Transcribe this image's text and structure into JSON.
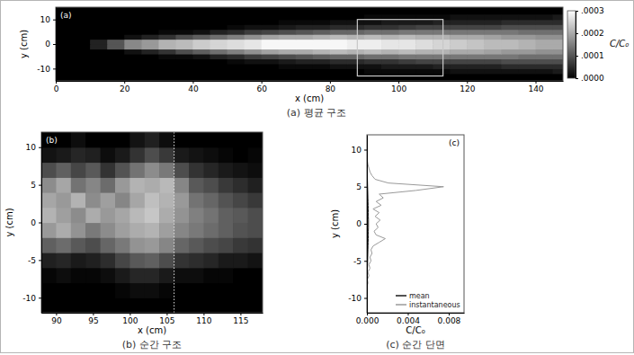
{
  "chart_data": [
    {
      "type": "heatmap",
      "title": "(a) 평균 구조",
      "label": "(a)",
      "x_label": "x (cm)",
      "y_label": "y (cm)",
      "x": [
        2.5,
        7.5,
        12.5,
        17.5,
        22.5,
        27.5,
        32.5,
        37.5,
        42.5,
        47.5,
        52.5,
        57.5,
        62.5,
        67.5,
        72.5,
        77.5,
        82.5,
        87.5,
        92.5,
        97.5,
        102.5,
        107.5,
        112.5,
        117.5,
        122.5,
        127.5,
        132.5,
        137.5,
        142.5,
        147.5
      ],
      "y": [
        -11,
        -9,
        -7,
        -5,
        -3,
        -1,
        1,
        3,
        5,
        7,
        9,
        11
      ],
      "z": [
        [
          0,
          0,
          0,
          0,
          0,
          0,
          0,
          0,
          0,
          0,
          0,
          0,
          0,
          0,
          0,
          0,
          0,
          0,
          1e-05,
          1e-05,
          1e-05,
          1e-05,
          1e-05,
          2e-05,
          2e-05,
          2e-05,
          2e-05,
          2e-05,
          2e-05,
          3e-05
        ],
        [
          0,
          0,
          0,
          0,
          0,
          0,
          0,
          0,
          0,
          0,
          0,
          0,
          0,
          1e-05,
          1e-05,
          1e-05,
          2e-05,
          2e-05,
          2e-05,
          3e-05,
          3e-05,
          3e-05,
          4e-05,
          4e-05,
          4e-05,
          4e-05,
          5e-05,
          5e-05,
          5e-05,
          5e-05
        ],
        [
          0,
          0,
          0,
          0,
          0,
          0,
          0,
          0,
          0,
          0,
          1e-05,
          2e-05,
          2e-05,
          3e-05,
          4e-05,
          4e-05,
          5e-05,
          5e-05,
          6e-05,
          6e-05,
          7e-05,
          8e-05,
          8e-05,
          8e-05,
          8e-05,
          8e-05,
          9e-05,
          9e-05,
          9e-05,
          9e-05
        ],
        [
          0,
          0,
          0,
          0,
          0,
          0,
          1e-05,
          1e-05,
          2e-05,
          4e-05,
          5e-05,
          7e-05,
          8e-05,
          9e-05,
          0.0001,
          0.00011,
          0.00012,
          0.00012,
          0.00013,
          0.00013,
          0.00014,
          0.00014,
          0.00014,
          0.00014,
          0.00014,
          0.00014,
          0.00014,
          0.00013,
          0.00013,
          0.00013
        ],
        [
          0,
          0,
          0,
          0,
          2e-05,
          4e-05,
          6e-05,
          9e-05,
          0.00011,
          0.00013,
          0.00015,
          0.00017,
          0.00019,
          0.0002,
          0.0002,
          0.00021,
          0.00022,
          0.00021,
          0.00022,
          0.00021,
          0.00022,
          0.00021,
          0.00021,
          0.0002,
          0.0002,
          0.00019,
          0.00018,
          0.00018,
          0.00017,
          0.00017
        ],
        [
          0,
          0,
          4e-05,
          0.0001,
          0.00016,
          0.00018,
          0.00021,
          0.00022,
          0.00024,
          0.00025,
          0.00026,
          0.00027,
          0.00029,
          0.00029,
          0.00029,
          0.00029,
          0.00029,
          0.00028,
          0.00028,
          0.00027,
          0.00027,
          0.00026,
          0.00025,
          0.00024,
          0.00023,
          0.00022,
          0.00022,
          0.00021,
          0.0002,
          0.0002
        ],
        [
          0,
          0,
          4e-05,
          0.0001,
          0.00016,
          0.00018,
          0.00021,
          0.00022,
          0.00024,
          0.00025,
          0.00026,
          0.00027,
          0.00029,
          0.00029,
          0.00029,
          0.00029,
          0.00029,
          0.00028,
          0.00028,
          0.00027,
          0.00027,
          0.00026,
          0.00025,
          0.00024,
          0.00023,
          0.00022,
          0.00022,
          0.00021,
          0.0002,
          0.0002
        ],
        [
          0,
          0,
          0,
          0,
          2e-05,
          4e-05,
          6e-05,
          9e-05,
          0.00011,
          0.00013,
          0.00015,
          0.00017,
          0.00019,
          0.0002,
          0.0002,
          0.00021,
          0.00022,
          0.00021,
          0.00022,
          0.00021,
          0.00022,
          0.00021,
          0.00021,
          0.0002,
          0.0002,
          0.00019,
          0.00018,
          0.00018,
          0.00017,
          0.00017
        ],
        [
          0,
          0,
          0,
          0,
          0,
          0,
          1e-05,
          1e-05,
          2e-05,
          4e-05,
          5e-05,
          7e-05,
          8e-05,
          9e-05,
          0.0001,
          0.00011,
          0.00012,
          0.00012,
          0.00013,
          0.00013,
          0.00014,
          0.00014,
          0.00014,
          0.00014,
          0.00014,
          0.00014,
          0.00014,
          0.00013,
          0.00013,
          0.00013
        ],
        [
          0,
          0,
          0,
          0,
          0,
          0,
          0,
          0,
          0,
          0,
          1e-05,
          2e-05,
          2e-05,
          3e-05,
          4e-05,
          4e-05,
          5e-05,
          5e-05,
          6e-05,
          6e-05,
          7e-05,
          8e-05,
          8e-05,
          8e-05,
          8e-05,
          8e-05,
          9e-05,
          9e-05,
          9e-05,
          9e-05
        ],
        [
          0,
          0,
          0,
          0,
          0,
          0,
          0,
          0,
          0,
          0,
          0,
          0,
          0,
          1e-05,
          1e-05,
          1e-05,
          2e-05,
          2e-05,
          2e-05,
          3e-05,
          3e-05,
          3e-05,
          4e-05,
          4e-05,
          4e-05,
          4e-05,
          5e-05,
          5e-05,
          5e-05,
          5e-05
        ],
        [
          0,
          0,
          0,
          0,
          0,
          0,
          0,
          0,
          0,
          0,
          0,
          0,
          0,
          0,
          0,
          0,
          0,
          0,
          1e-05,
          1e-05,
          1e-05,
          1e-05,
          1e-05,
          2e-05,
          2e-05,
          2e-05,
          2e-05,
          2e-05,
          2e-05,
          3e-05
        ]
      ],
      "xlim": [
        0,
        148
      ],
      "ylim": [
        -15,
        15
      ],
      "xticks": [
        0,
        20,
        40,
        60,
        80,
        100,
        120,
        140
      ],
      "yticks": [
        -10,
        0,
        10
      ],
      "clim": [
        0,
        0.0003
      ],
      "cticks": [
        {
          "value": 0,
          "label": ".0000"
        },
        {
          "value": 0.0001,
          "label": ".0001"
        },
        {
          "value": 0.0002,
          "label": ".0002"
        },
        {
          "value": 0.0003,
          "label": ".0003"
        }
      ],
      "color_label": "C/C₀",
      "highlight": {
        "x": [
          88,
          113
        ],
        "y": [
          -13,
          10
        ]
      }
    },
    {
      "type": "heatmap",
      "title": "(b) 순간 구조",
      "label": "(b)",
      "x_label": "x (cm)",
      "y_label": "y (cm)",
      "x": [
        89,
        91,
        93,
        95,
        97,
        99,
        101,
        103,
        105,
        107,
        109,
        111,
        113,
        115,
        117
      ],
      "y": [
        -11,
        -9,
        -7,
        -5,
        -3,
        -1,
        1,
        3,
        5,
        7,
        9,
        11
      ],
      "z": [
        [
          0,
          0,
          0,
          0,
          0,
          0,
          0,
          0,
          0,
          0,
          0,
          0,
          0,
          0,
          0
        ],
        [
          0,
          0,
          0,
          0,
          0,
          0.0001,
          0.0002,
          0.0002,
          0.0001,
          0,
          0,
          0,
          0,
          0,
          0
        ],
        [
          0.0001,
          0.0002,
          0.0001,
          0.0001,
          0.0002,
          0.0004,
          0.0006,
          0.0006,
          0.0004,
          0.0002,
          0.0002,
          0.0001,
          0.0001,
          0,
          0
        ],
        [
          0.0005,
          0.0006,
          0.0004,
          0.0005,
          0.0007,
          0.0011,
          0.0014,
          0.0015,
          0.0012,
          0.0008,
          0.0007,
          0.0006,
          0.0004,
          0.0004,
          0.0003
        ],
        [
          0.0015,
          0.0017,
          0.0014,
          0.0012,
          0.0016,
          0.0019,
          0.0023,
          0.0024,
          0.0021,
          0.0016,
          0.0014,
          0.0012,
          0.0011,
          0.0009,
          0.0008
        ],
        [
          0.0024,
          0.0027,
          0.0023,
          0.0019,
          0.0022,
          0.0025,
          0.0027,
          0.0028,
          0.0025,
          0.0021,
          0.0019,
          0.0017,
          0.0015,
          0.0013,
          0.0012
        ],
        [
          0.0028,
          0.0025,
          0.0022,
          0.0027,
          0.0024,
          0.0026,
          0.0029,
          0.0031,
          0.0027,
          0.0023,
          0.002,
          0.0018,
          0.0015,
          0.0014,
          0.0012
        ],
        [
          0.0026,
          0.0024,
          0.0028,
          0.0022,
          0.0025,
          0.0021,
          0.0026,
          0.003,
          0.0028,
          0.0024,
          0.0018,
          0.0016,
          0.0013,
          0.0011,
          0.0009
        ],
        [
          0.0022,
          0.0026,
          0.0018,
          0.0021,
          0.0017,
          0.0024,
          0.0028,
          0.0027,
          0.0029,
          0.0021,
          0.0014,
          0.0012,
          0.0009,
          0.0007,
          0.0005
        ],
        [
          0.0012,
          0.0015,
          0.0011,
          0.0014,
          0.0008,
          0.0013,
          0.0018,
          0.0022,
          0.0019,
          0.0012,
          0.0008,
          0.0006,
          0.0004,
          0.0003,
          0.0002
        ],
        [
          0.0003,
          0.0004,
          0.0006,
          0.0005,
          0.0002,
          0.0004,
          0.0008,
          0.0012,
          0.0009,
          0.0004,
          0.0003,
          0.0002,
          0.0001,
          0,
          0.0001
        ],
        [
          0,
          0,
          0.0002,
          0,
          0,
          0,
          0.0003,
          0.0005,
          0.0002,
          0,
          0,
          0,
          0,
          0,
          0
        ]
      ],
      "xlim": [
        88,
        118
      ],
      "ylim": [
        -12,
        12
      ],
      "xticks": [
        90,
        95,
        100,
        105,
        110,
        115
      ],
      "yticks": [
        -10,
        -5,
        0,
        5,
        10
      ],
      "clim": [
        0,
        0.004
      ],
      "section_x": 106
    },
    {
      "type": "line",
      "orientation": "horizontal",
      "title": "(c) 순간 단면",
      "label": "(c)",
      "x_label": "C/C₀",
      "y_label": "y (cm)",
      "y": [
        -11.5,
        -11,
        -10.5,
        -10,
        -9.5,
        -9,
        -8.5,
        -8,
        -7.5,
        -7,
        -6.5,
        -6,
        -5.5,
        -5,
        -4.5,
        -4,
        -3.5,
        -3,
        -2.5,
        -2,
        -1.5,
        -1,
        -0.5,
        0,
        0.5,
        1,
        1.5,
        2,
        2.5,
        3,
        3.5,
        4,
        4.5,
        5,
        5.5,
        6,
        6.5,
        7,
        7.5,
        8,
        8.5,
        9,
        9.5,
        10,
        10.5,
        11,
        11.5
      ],
      "series": [
        {
          "name": "mean",
          "color": "#1a1a1a",
          "values": [
            0,
            0,
            0,
            0,
            0,
            1e-05,
            1e-05,
            2e-05,
            2e-05,
            3e-05,
            4e-05,
            5e-05,
            6e-05,
            7e-05,
            8e-05,
            9e-05,
            0.0001,
            0.00011,
            0.00012,
            0.00013,
            0.00014,
            0.00014,
            0.00015,
            0.00015,
            0.00015,
            0.00014,
            0.00014,
            0.00013,
            0.00012,
            0.00011,
            0.0001,
            9e-05,
            8e-05,
            7e-05,
            6e-05,
            5e-05,
            4e-05,
            3e-05,
            2e-05,
            2e-05,
            1e-05,
            1e-05,
            0,
            0,
            0,
            0,
            0
          ]
        },
        {
          "name": "instantaneous",
          "color": "#9a9a9a",
          "values": [
            0,
            0,
            0,
            0,
            0,
            5e-05,
            0,
            0.0001,
            5e-05,
            0.0002,
            0.0001,
            0.0003,
            0.0002,
            0.0004,
            0.0003,
            0.0005,
            0.0004,
            0.0006,
            0.0012,
            0.0018,
            0.0009,
            0.0007,
            0.0011,
            0.0009,
            0.0013,
            0.0008,
            0.0012,
            0.0006,
            0.0014,
            0.0009,
            0.0016,
            0.0012,
            0.0048,
            0.0075,
            0.0021,
            0.0008,
            0.0005,
            0.0003,
            0.0002,
            0.0001,
            5e-05,
            0,
            0,
            0,
            0,
            0,
            0
          ]
        }
      ],
      "xlim": [
        0,
        0.0095
      ],
      "ylim": [
        -12,
        12
      ],
      "xticks": [
        {
          "value": 0,
          "label": "0.000"
        },
        {
          "value": 0.004,
          "label": "0.004"
        },
        {
          "value": 0.008,
          "label": "0.008"
        }
      ],
      "yticks": [
        -10,
        -5,
        0,
        5,
        10
      ],
      "legend": "lower right"
    }
  ]
}
